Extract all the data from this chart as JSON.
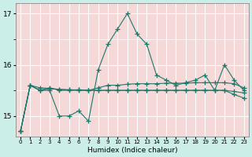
{
  "x": [
    0,
    1,
    2,
    3,
    4,
    5,
    6,
    7,
    8,
    9,
    10,
    11,
    12,
    13,
    14,
    15,
    16,
    17,
    18,
    19,
    20,
    21,
    22,
    23
  ],
  "line1": [
    14.7,
    15.6,
    15.5,
    15.5,
    15.0,
    15.0,
    15.1,
    14.9,
    15.9,
    16.4,
    16.7,
    17.0,
    16.6,
    16.4,
    15.8,
    15.7,
    15.6,
    15.65,
    15.7,
    15.8,
    15.5,
    16.0,
    15.7,
    15.5
  ],
  "line2": [
    14.7,
    15.6,
    15.5,
    15.55,
    15.5,
    15.5,
    15.5,
    15.5,
    15.55,
    15.6,
    15.6,
    15.62,
    15.63,
    15.63,
    15.63,
    15.64,
    15.64,
    15.64,
    15.65,
    15.65,
    15.65,
    15.65,
    15.63,
    15.55
  ],
  "line3": [
    14.7,
    15.6,
    15.5,
    15.53,
    15.52,
    15.51,
    15.51,
    15.5,
    15.5,
    15.5,
    15.5,
    15.5,
    15.5,
    15.5,
    15.5,
    15.5,
    15.5,
    15.5,
    15.5,
    15.5,
    15.5,
    15.5,
    15.48,
    15.45
  ],
  "line4": [
    14.7,
    15.6,
    15.55,
    15.54,
    15.52,
    15.51,
    15.51,
    15.5,
    15.5,
    15.5,
    15.5,
    15.5,
    15.5,
    15.5,
    15.5,
    15.5,
    15.5,
    15.5,
    15.5,
    15.5,
    15.5,
    15.5,
    15.42,
    15.35
  ],
  "line_color": "#1a7a6a",
  "outer_bg": "#cceee8",
  "plot_bg": "#f5d8d8",
  "grid_color": "#ffffff",
  "xlabel": "Humidex (Indice chaleur)",
  "ylim": [
    14.6,
    17.2
  ],
  "yticks": [
    15,
    16,
    17
  ],
  "xlim": [
    -0.5,
    23.5
  ]
}
